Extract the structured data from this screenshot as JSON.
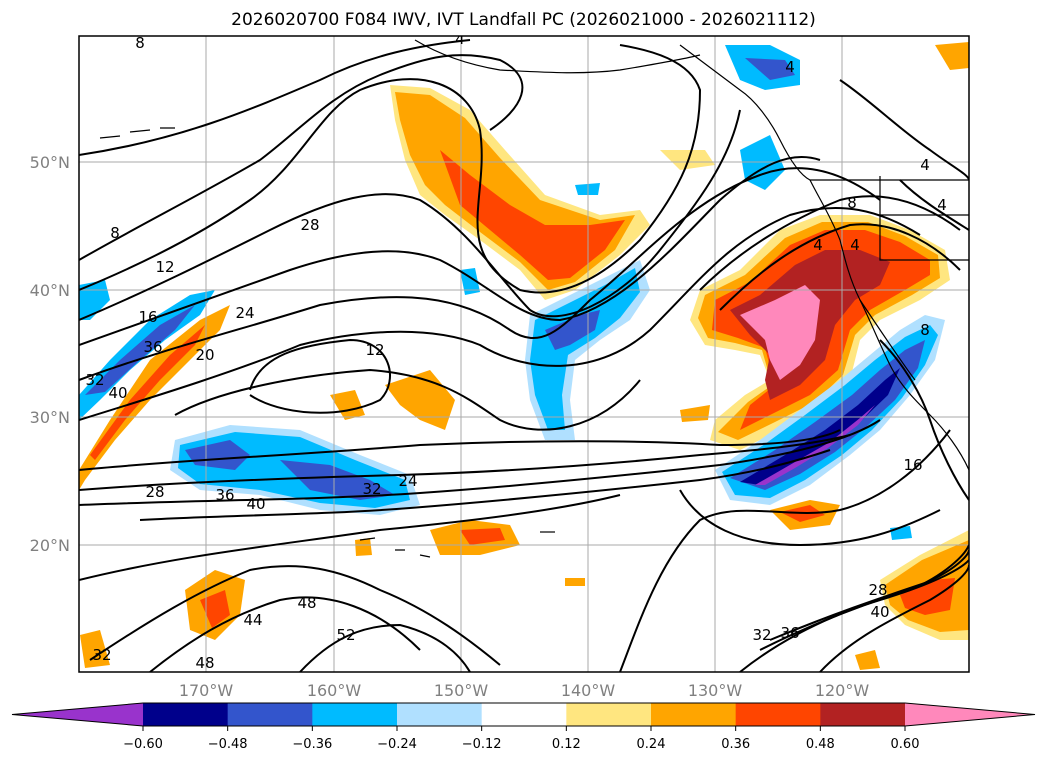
{
  "title": "2026020700 F084 IWV, IVT Landfall PC (2026021000 - 2026021112)",
  "lat_labels": [
    "50°N",
    "40°N",
    "30°N",
    "20°N"
  ],
  "lon_labels": [
    "170°W",
    "160°W",
    "150°W",
    "140°W",
    "130°W",
    "120°W"
  ],
  "colorbar": {
    "colors": [
      "#9933cc",
      "#00008b",
      "#3355cc",
      "#00bbff",
      "#b0e0ff",
      "#ffffff",
      "#ffe680",
      "#ffa500",
      "#ff4500",
      "#b22222",
      "#ff88bb"
    ],
    "ticks": [
      "−0.60",
      "−0.48",
      "−0.36",
      "−0.24",
      "−0.12",
      "0.12",
      "0.24",
      "0.36",
      "0.48",
      "0.60"
    ]
  },
  "contour_labels": [
    "8",
    "4",
    "4",
    "8",
    "12",
    "16",
    "20",
    "24",
    "28",
    "12",
    "36",
    "32",
    "40",
    "24",
    "32",
    "36",
    "40",
    "28",
    "16",
    "28",
    "32",
    "36",
    "40",
    "44",
    "48",
    "52",
    "48",
    "32",
    "4",
    "4",
    "8",
    "4",
    "4",
    "8"
  ]
}
